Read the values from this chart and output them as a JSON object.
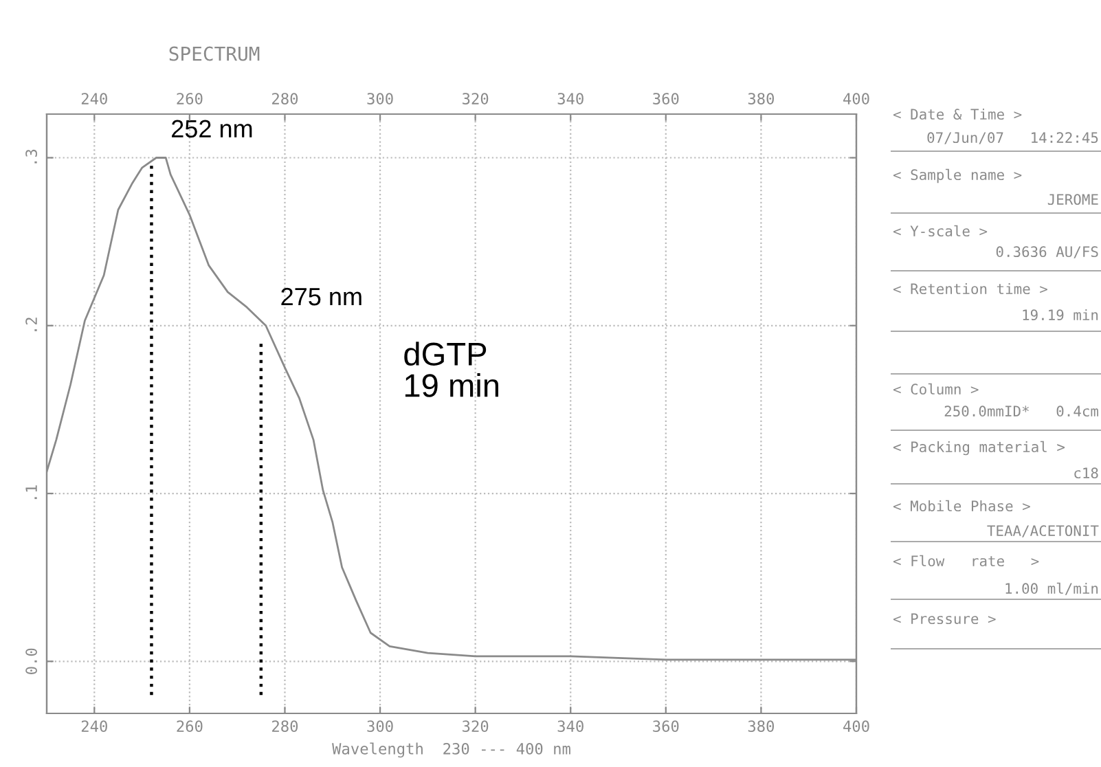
{
  "chart_data": [
    {
      "type": "line",
      "title": "SPECTRUM",
      "xlabel": "Wavelength  230 --- 400 nm",
      "series": [
        {
          "color": "#8a8a8a",
          "x": [
            230,
            232,
            235,
            238,
            242,
            245,
            248,
            250,
            253,
            255,
            256,
            260,
            264,
            268,
            272,
            276,
            280,
            283,
            286,
            288,
            290,
            292,
            295,
            298,
            302,
            310,
            320,
            340,
            360,
            400
          ],
          "values": [
            0.113,
            0.132,
            0.165,
            0.203,
            0.23,
            0.269,
            0.285,
            0.294,
            0.3,
            0.3,
            0.29,
            0.266,
            0.236,
            0.22,
            0.211,
            0.2,
            0.175,
            0.157,
            0.132,
            0.102,
            0.083,
            0.056,
            0.036,
            0.017,
            0.009,
            0.005,
            0.003,
            0.003,
            0.001,
            0.001
          ]
        },
        {
          "color": "#000000",
          "line_style": "dotted",
          "x": [
            252,
            252
          ],
          "values": [
            -0.02,
            0.296
          ]
        },
        {
          "color": "#000000",
          "line_style": "dotted",
          "x": [
            275,
            275
          ],
          "values": [
            -0.02,
            0.191
          ]
        }
      ],
      "annotations": [
        {
          "text": "252 nm",
          "x": 252,
          "y": 0.3
        },
        {
          "text": "275 nm",
          "x": 275,
          "y": 0.2
        },
        "dGTP\n19 min"
      ],
      "xlim": [
        230,
        400
      ],
      "xticks": [
        240,
        260,
        280,
        300,
        320,
        340,
        360,
        380,
        400
      ],
      "x2lim": [
        230,
        400
      ],
      "x2ticks": [
        240,
        260,
        280,
        300,
        320,
        340,
        360,
        380,
        400
      ],
      "ylim": [
        -0.031,
        0.326
      ],
      "yticks": [
        {
          "value": 0,
          "label": "0.0"
        },
        {
          "value": 0.1,
          "label": ".1"
        },
        {
          "value": 0.2,
          "label": ".2"
        },
        {
          "value": 0.3,
          "label": ".3"
        }
      ],
      "grid": true,
      "legend": false
    },
    {
      "type": "other",
      "annotations": [
        "< Date & Time >",
        "07/Jun/07   14:22:45",
        "< Sample name >",
        "JEROME",
        "< Y-scale >",
        "0.3636 AU/FS",
        "< Retention time >",
        "19.19 min",
        "< Column >",
        "250.0mmID*   0.4cm",
        "< Packing material >",
        "c18",
        "< Mobile Phase >",
        "TEAA/ACETONIT",
        "< Flow   rate   >",
        "1.00 ml/min",
        "< Pressure >"
      ]
    }
  ]
}
